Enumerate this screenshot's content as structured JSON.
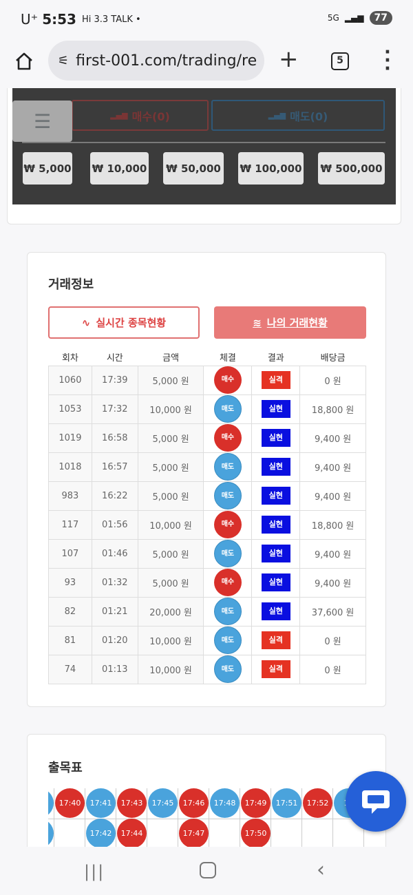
{
  "status_bar": {
    "carrier": "U⁺",
    "time": "5:53",
    "extra": "Hi 3.3 TALK •",
    "network": "5G",
    "battery": "77"
  },
  "browser": {
    "url": "first-001.com/trading/re",
    "tab_count": "5"
  },
  "trade_panel": {
    "buy_label": "매수(0)",
    "sell_label": "매도(0)",
    "amounts": [
      "₩ 5,000",
      "₩ 10,000",
      "₩ 50,000",
      "₩ 100,000",
      "₩ 500,000"
    ]
  },
  "trade_info": {
    "title": "거래정보",
    "tab_realtime": "실시간 종목현황",
    "tab_mine": "나의 거래현황",
    "columns": [
      "회차",
      "시간",
      "금액",
      "체결",
      "결과",
      "배당금"
    ],
    "rows": [
      [
        "1060",
        "17:39",
        "5,000 원",
        "매수",
        "실격",
        "0 원"
      ],
      [
        "1053",
        "17:32",
        "10,000 원",
        "매도",
        "실현",
        "18,800 원"
      ],
      [
        "1019",
        "16:58",
        "5,000 원",
        "매수",
        "실현",
        "9,400 원"
      ],
      [
        "1018",
        "16:57",
        "5,000 원",
        "매도",
        "실현",
        "9,400 원"
      ],
      [
        "983",
        "16:22",
        "5,000 원",
        "매도",
        "실현",
        "9,400 원"
      ],
      [
        "117",
        "01:56",
        "10,000 원",
        "매수",
        "실현",
        "18,800 원"
      ],
      [
        "107",
        "01:46",
        "5,000 원",
        "매도",
        "실현",
        "9,400 원"
      ],
      [
        "93",
        "01:32",
        "5,000 원",
        "매수",
        "실현",
        "9,400 원"
      ],
      [
        "82",
        "01:21",
        "20,000 원",
        "매도",
        "실현",
        "37,600 원"
      ],
      [
        "81",
        "01:20",
        "10,000 원",
        "매도",
        "실격",
        "0 원"
      ],
      [
        "74",
        "01:13",
        "10,000 원",
        "매도",
        "실격",
        "0 원"
      ]
    ]
  },
  "results_board": {
    "title": "출목표",
    "columns": [
      {
        "cells": [
          {
            "t": "",
            "c": "sell"
          },
          {
            "t": "",
            "c": "sell"
          }
        ]
      },
      {
        "cells": [
          {
            "t": "17:40",
            "c": "buy"
          }
        ]
      },
      {
        "cells": [
          {
            "t": "17:41",
            "c": "sell"
          },
          {
            "t": "17:42",
            "c": "sell"
          }
        ]
      },
      {
        "cells": [
          {
            "t": "17:43",
            "c": "buy"
          },
          {
            "t": "17:44",
            "c": "buy"
          }
        ]
      },
      {
        "cells": [
          {
            "t": "17:45",
            "c": "sell"
          }
        ]
      },
      {
        "cells": [
          {
            "t": "17:46",
            "c": "buy"
          },
          {
            "t": "17:47",
            "c": "buy"
          }
        ]
      },
      {
        "cells": [
          {
            "t": "17:48",
            "c": "sell"
          }
        ]
      },
      {
        "cells": [
          {
            "t": "17:49",
            "c": "buy"
          },
          {
            "t": "17:50",
            "c": "buy"
          }
        ]
      },
      {
        "cells": [
          {
            "t": "17:51",
            "c": "sell"
          }
        ]
      },
      {
        "cells": [
          {
            "t": "17:52",
            "c": "buy"
          }
        ]
      },
      {
        "cells": [
          {
            "t": "17",
            "c": "sell"
          }
        ]
      }
    ]
  },
  "colors": {
    "buy": "#d9302a",
    "sell": "#4aa3dc",
    "win": "#0a0fe0",
    "lose": "#e53222",
    "chat": "#2560d8"
  }
}
